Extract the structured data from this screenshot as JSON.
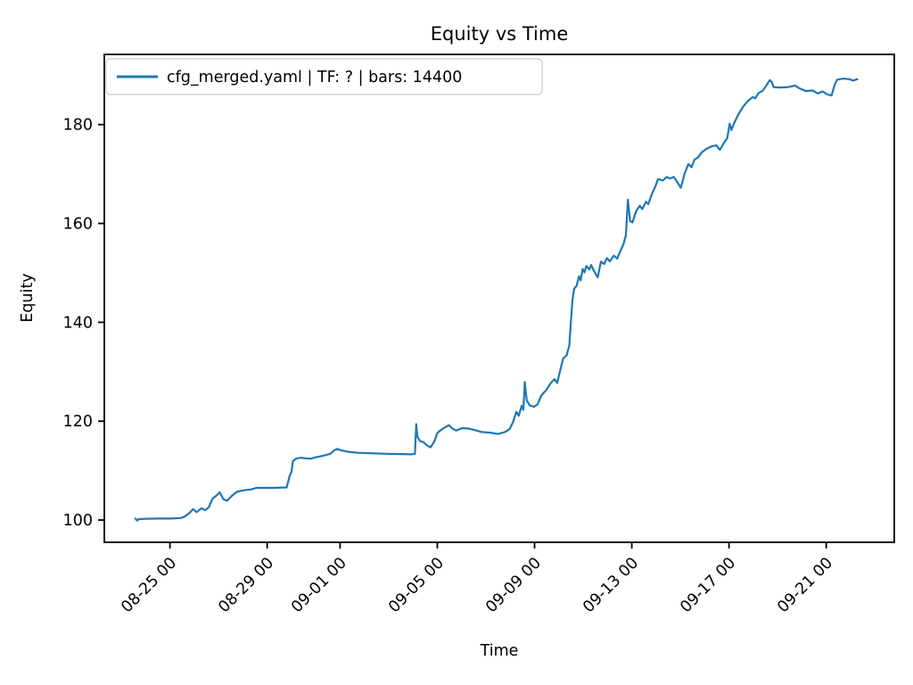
{
  "figure": {
    "title": "Equity vs Time",
    "xlabel": "Time",
    "ylabel": "Equity"
  },
  "chart_data": {
    "type": "line",
    "title": "Equity vs Time",
    "xlabel": "Time",
    "ylabel": "Equity",
    "grid": false,
    "legend_position": "upper left",
    "line_color": "#1f77b4",
    "x_unit": "days since 08-23 00:00, labels formatted MM-DD HH",
    "xlim": [
      -0.7,
      31.8
    ],
    "ylim": [
      95.5,
      194.2
    ],
    "x_ticks": [
      {
        "pos": 2,
        "label": "08-25 00"
      },
      {
        "pos": 6,
        "label": "08-29 00"
      },
      {
        "pos": 9,
        "label": "09-01 00"
      },
      {
        "pos": 13,
        "label": "09-05 00"
      },
      {
        "pos": 17,
        "label": "09-09 00"
      },
      {
        "pos": 21,
        "label": "09-13 00"
      },
      {
        "pos": 25,
        "label": "09-17 00"
      },
      {
        "pos": 29,
        "label": "09-21 00"
      }
    ],
    "y_ticks": [
      100,
      120,
      140,
      160,
      180
    ],
    "series": [
      {
        "name": "cfg_merged.yaml | TF: ? | bars: 14400",
        "color": "#1f77b4",
        "points": [
          [
            0.58,
            100.3
          ],
          [
            0.65,
            99.9
          ],
          [
            0.72,
            100.2
          ],
          [
            1.0,
            100.25
          ],
          [
            1.5,
            100.3
          ],
          [
            2.0,
            100.3
          ],
          [
            2.45,
            100.4
          ],
          [
            2.6,
            100.7
          ],
          [
            2.8,
            101.4
          ],
          [
            2.95,
            102.2
          ],
          [
            3.1,
            101.6
          ],
          [
            3.3,
            102.4
          ],
          [
            3.45,
            102.0
          ],
          [
            3.6,
            102.6
          ],
          [
            3.75,
            104.3
          ],
          [
            3.9,
            104.9
          ],
          [
            4.05,
            105.6
          ],
          [
            4.2,
            104.2
          ],
          [
            4.35,
            103.9
          ],
          [
            4.55,
            104.9
          ],
          [
            4.75,
            105.7
          ],
          [
            5.0,
            106.0
          ],
          [
            5.35,
            106.2
          ],
          [
            5.55,
            106.5
          ],
          [
            6.2,
            106.5
          ],
          [
            6.8,
            106.6
          ],
          [
            6.93,
            109.0
          ],
          [
            7.0,
            109.7
          ],
          [
            7.06,
            111.9
          ],
          [
            7.18,
            112.4
          ],
          [
            7.38,
            112.6
          ],
          [
            7.58,
            112.5
          ],
          [
            7.78,
            112.4
          ],
          [
            8.0,
            112.7
          ],
          [
            8.3,
            113.0
          ],
          [
            8.6,
            113.4
          ],
          [
            8.78,
            114.2
          ],
          [
            8.88,
            114.4
          ],
          [
            9.05,
            114.1
          ],
          [
            9.35,
            113.8
          ],
          [
            9.75,
            113.6
          ],
          [
            10.3,
            113.5
          ],
          [
            10.9,
            113.4
          ],
          [
            11.5,
            113.35
          ],
          [
            11.95,
            113.3
          ],
          [
            12.08,
            113.4
          ],
          [
            12.13,
            119.4
          ],
          [
            12.18,
            116.9
          ],
          [
            12.28,
            116.0
          ],
          [
            12.42,
            115.8
          ],
          [
            12.58,
            115.1
          ],
          [
            12.72,
            114.7
          ],
          [
            12.88,
            115.9
          ],
          [
            13.0,
            117.6
          ],
          [
            13.12,
            118.1
          ],
          [
            13.3,
            118.7
          ],
          [
            13.48,
            119.2
          ],
          [
            13.62,
            118.5
          ],
          [
            13.78,
            118.1
          ],
          [
            14.02,
            118.6
          ],
          [
            14.28,
            118.5
          ],
          [
            14.55,
            118.2
          ],
          [
            14.82,
            117.8
          ],
          [
            15.15,
            117.7
          ],
          [
            15.5,
            117.4
          ],
          [
            15.78,
            117.8
          ],
          [
            15.98,
            118.4
          ],
          [
            16.12,
            119.9
          ],
          [
            16.25,
            121.9
          ],
          [
            16.35,
            121.1
          ],
          [
            16.47,
            123.1
          ],
          [
            16.54,
            122.3
          ],
          [
            16.6,
            127.9
          ],
          [
            16.68,
            124.2
          ],
          [
            16.8,
            123.2
          ],
          [
            16.98,
            122.9
          ],
          [
            17.12,
            123.4
          ],
          [
            17.28,
            125.2
          ],
          [
            17.48,
            126.3
          ],
          [
            17.68,
            127.8
          ],
          [
            17.82,
            128.5
          ],
          [
            17.93,
            127.7
          ],
          [
            18.08,
            130.8
          ],
          [
            18.18,
            132.7
          ],
          [
            18.32,
            133.3
          ],
          [
            18.43,
            135.3
          ],
          [
            18.5,
            140.3
          ],
          [
            18.56,
            144.6
          ],
          [
            18.63,
            146.8
          ],
          [
            18.73,
            147.4
          ],
          [
            18.83,
            149.3
          ],
          [
            18.9,
            148.5
          ],
          [
            18.98,
            150.8
          ],
          [
            19.06,
            150.1
          ],
          [
            19.13,
            151.4
          ],
          [
            19.26,
            150.7
          ],
          [
            19.33,
            151.6
          ],
          [
            19.48,
            150.1
          ],
          [
            19.6,
            149.1
          ],
          [
            19.73,
            152.3
          ],
          [
            19.86,
            151.8
          ],
          [
            19.98,
            153.0
          ],
          [
            20.1,
            152.3
          ],
          [
            20.26,
            153.5
          ],
          [
            20.4,
            152.9
          ],
          [
            20.53,
            154.4
          ],
          [
            20.66,
            155.8
          ],
          [
            20.76,
            157.6
          ],
          [
            20.84,
            164.8
          ],
          [
            20.93,
            160.5
          ],
          [
            21.03,
            160.2
          ],
          [
            21.18,
            162.5
          ],
          [
            21.33,
            163.6
          ],
          [
            21.43,
            162.9
          ],
          [
            21.58,
            164.4
          ],
          [
            21.68,
            163.9
          ],
          [
            21.83,
            166.0
          ],
          [
            21.98,
            167.6
          ],
          [
            22.08,
            169.0
          ],
          [
            22.28,
            168.7
          ],
          [
            22.43,
            169.4
          ],
          [
            22.58,
            169.1
          ],
          [
            22.73,
            169.4
          ],
          [
            22.88,
            168.3
          ],
          [
            23.02,
            167.2
          ],
          [
            23.18,
            170.2
          ],
          [
            23.33,
            172.0
          ],
          [
            23.46,
            171.4
          ],
          [
            23.58,
            172.9
          ],
          [
            23.73,
            173.4
          ],
          [
            23.88,
            174.4
          ],
          [
            24.08,
            175.1
          ],
          [
            24.28,
            175.6
          ],
          [
            24.48,
            175.8
          ],
          [
            24.63,
            174.9
          ],
          [
            24.78,
            176.2
          ],
          [
            24.93,
            177.3
          ],
          [
            25.03,
            180.2
          ],
          [
            25.1,
            178.9
          ],
          [
            25.22,
            180.4
          ],
          [
            25.38,
            182.0
          ],
          [
            25.58,
            183.6
          ],
          [
            25.78,
            184.8
          ],
          [
            25.98,
            185.6
          ],
          [
            26.08,
            185.3
          ],
          [
            26.22,
            186.4
          ],
          [
            26.38,
            186.8
          ],
          [
            26.52,
            187.8
          ],
          [
            26.68,
            189.0
          ],
          [
            26.76,
            188.6
          ],
          [
            26.83,
            187.6
          ],
          [
            27.05,
            187.5
          ],
          [
            27.45,
            187.6
          ],
          [
            27.72,
            187.9
          ],
          [
            27.88,
            187.4
          ],
          [
            28.15,
            186.8
          ],
          [
            28.45,
            186.9
          ],
          [
            28.65,
            186.3
          ],
          [
            28.85,
            186.7
          ],
          [
            29.05,
            186.1
          ],
          [
            29.22,
            185.9
          ],
          [
            29.35,
            188.1
          ],
          [
            29.45,
            189.1
          ],
          [
            29.7,
            189.3
          ],
          [
            29.95,
            189.2
          ],
          [
            30.1,
            188.9
          ],
          [
            30.28,
            189.2
          ]
        ]
      }
    ]
  }
}
